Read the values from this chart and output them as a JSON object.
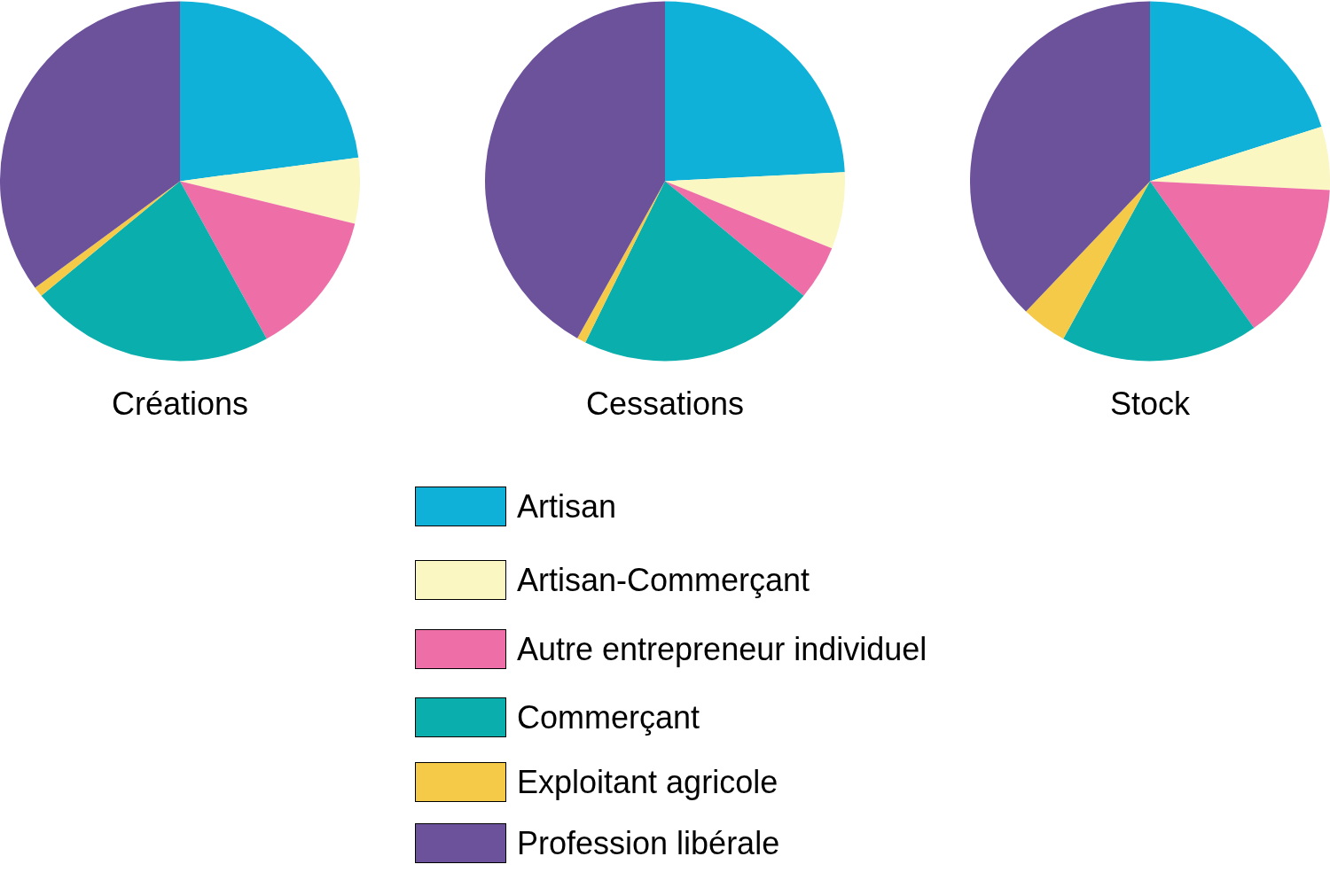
{
  "chart_data": [
    {
      "type": "pie",
      "title": "Créations",
      "categories": [
        null,
        null,
        null,
        null,
        null,
        null
      ],
      "values": [
        22.9,
        5.9,
        13.2,
        22.0,
        0.9,
        35.1
      ],
      "colors": [
        "#0fb1d8",
        "#faf7c3",
        "#ee6fa7",
        "#0aaeac",
        "#f4ca48",
        "#6c529b"
      ]
    },
    {
      "type": "pie",
      "title": "Cessations",
      "categories": [
        "Artisan",
        "Artisan-Commerçant",
        "Autre entrepreneur individuel",
        "Commerçant",
        "Exploitant agricole",
        "Profession libérale"
      ],
      "values": [
        24.2,
        6.9,
        4.9,
        21.3,
        0.8,
        41.9
      ],
      "colors": [
        "#0fb1d8",
        "#faf7c3",
        "#ee6fa7",
        "#0aaeac",
        "#f4ca48",
        "#6c529b"
      ],
      "legend": "bottom"
    },
    {
      "type": "pie",
      "title": "Stock",
      "categories": [
        null,
        null,
        null,
        null,
        null,
        null
      ],
      "values": [
        20.1,
        5.7,
        14.4,
        17.8,
        4.1,
        37.9
      ],
      "colors": [
        "#0fb1d8",
        "#faf7c3",
        "#ee6fa7",
        "#0aaeac",
        "#f4ca48",
        "#6c529b"
      ]
    }
  ]
}
